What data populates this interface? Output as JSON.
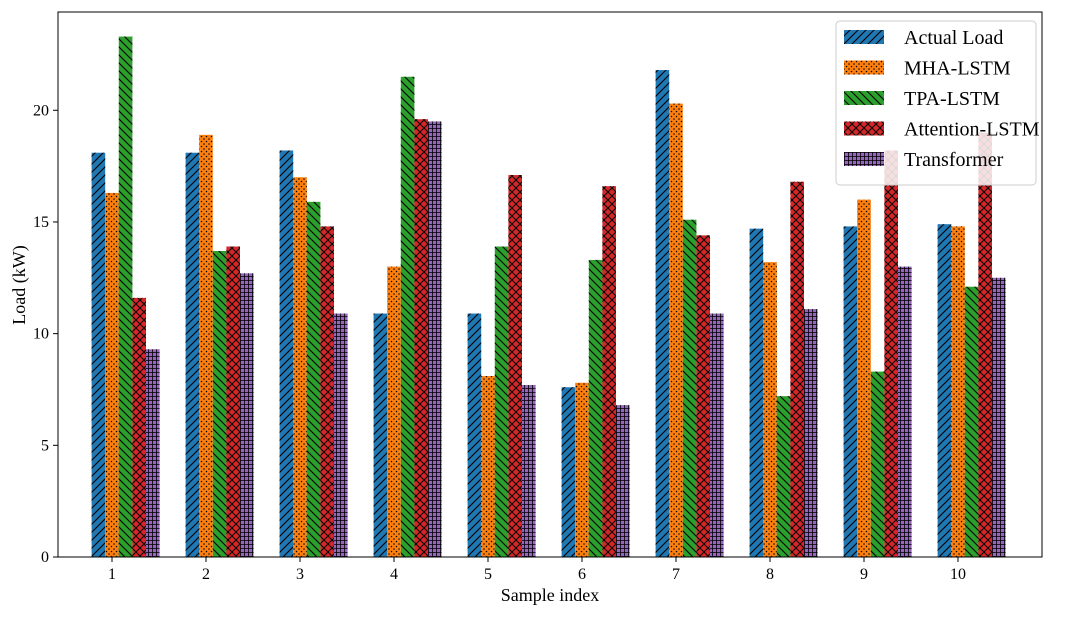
{
  "chart_data": {
    "type": "bar",
    "title": "",
    "xlabel": "Sample index",
    "ylabel": "Load (kW)",
    "categories": [
      "1",
      "2",
      "3",
      "4",
      "5",
      "6",
      "7",
      "8",
      "9",
      "10"
    ],
    "yticks": [
      "0",
      "5",
      "10",
      "15",
      "20"
    ],
    "ylim": [
      0,
      24.4
    ],
    "grid": false,
    "legend_position": "top-right",
    "series": [
      {
        "name": "Actual Load",
        "color": "#1f77b4",
        "hatch": "diagonal",
        "values": [
          18.1,
          18.1,
          18.2,
          10.9,
          10.9,
          7.6,
          21.8,
          14.7,
          14.8,
          14.9
        ]
      },
      {
        "name": "MHA-LSTM",
        "color": "#ff7f0e",
        "hatch": "dots",
        "values": [
          16.3,
          18.9,
          17.0,
          13.0,
          8.1,
          7.8,
          20.3,
          13.2,
          16.0,
          14.8
        ]
      },
      {
        "name": "TPA-LSTM",
        "color": "#2ca02c",
        "hatch": "backdiagonal",
        "values": [
          23.3,
          13.7,
          15.9,
          21.5,
          13.9,
          13.3,
          15.1,
          7.2,
          8.3,
          12.1
        ]
      },
      {
        "name": "Attention-LSTM",
        "color": "#d62728",
        "hatch": "crosshatch",
        "values": [
          11.6,
          13.9,
          14.8,
          19.6,
          17.1,
          16.6,
          14.4,
          16.8,
          18.2,
          19.0
        ]
      },
      {
        "name": "Transformer",
        "color": "#9467bd",
        "hatch": "grid",
        "values": [
          9.3,
          12.7,
          10.9,
          19.5,
          7.7,
          6.8,
          10.9,
          11.1,
          13.0,
          12.5
        ]
      }
    ]
  }
}
